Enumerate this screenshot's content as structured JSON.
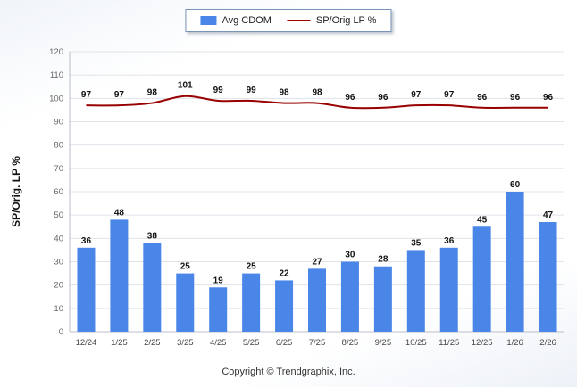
{
  "legend": {
    "bar_label": "Avg CDOM",
    "line_label": "SP/Orig LP %"
  },
  "footer": "Copyright © Trendgraphix, Inc.",
  "chart_data": {
    "type": "bar",
    "title": "",
    "categories": [
      "12/24",
      "1/25",
      "2/25",
      "3/25",
      "4/25",
      "5/25",
      "6/25",
      "7/25",
      "8/25",
      "9/25",
      "10/25",
      "11/25",
      "12/25",
      "1/26",
      "2/26"
    ],
    "series": [
      {
        "name": "Avg CDOM",
        "type": "bar",
        "color": "#4a86e8",
        "values": [
          36,
          48,
          38,
          25,
          19,
          25,
          22,
          27,
          30,
          28,
          35,
          36,
          45,
          60,
          47
        ]
      },
      {
        "name": "SP/Orig LP %",
        "type": "line",
        "color": "#990000",
        "values": [
          97,
          97,
          98,
          101,
          99,
          99,
          98,
          98,
          96,
          96,
          97,
          97,
          96,
          96,
          96
        ]
      }
    ],
    "xlabel": "",
    "ylabel": "SP/Orig. LP %",
    "ylim": [
      0,
      120
    ],
    "ytick_step": 10,
    "grid": true,
    "legend_position": "top"
  }
}
